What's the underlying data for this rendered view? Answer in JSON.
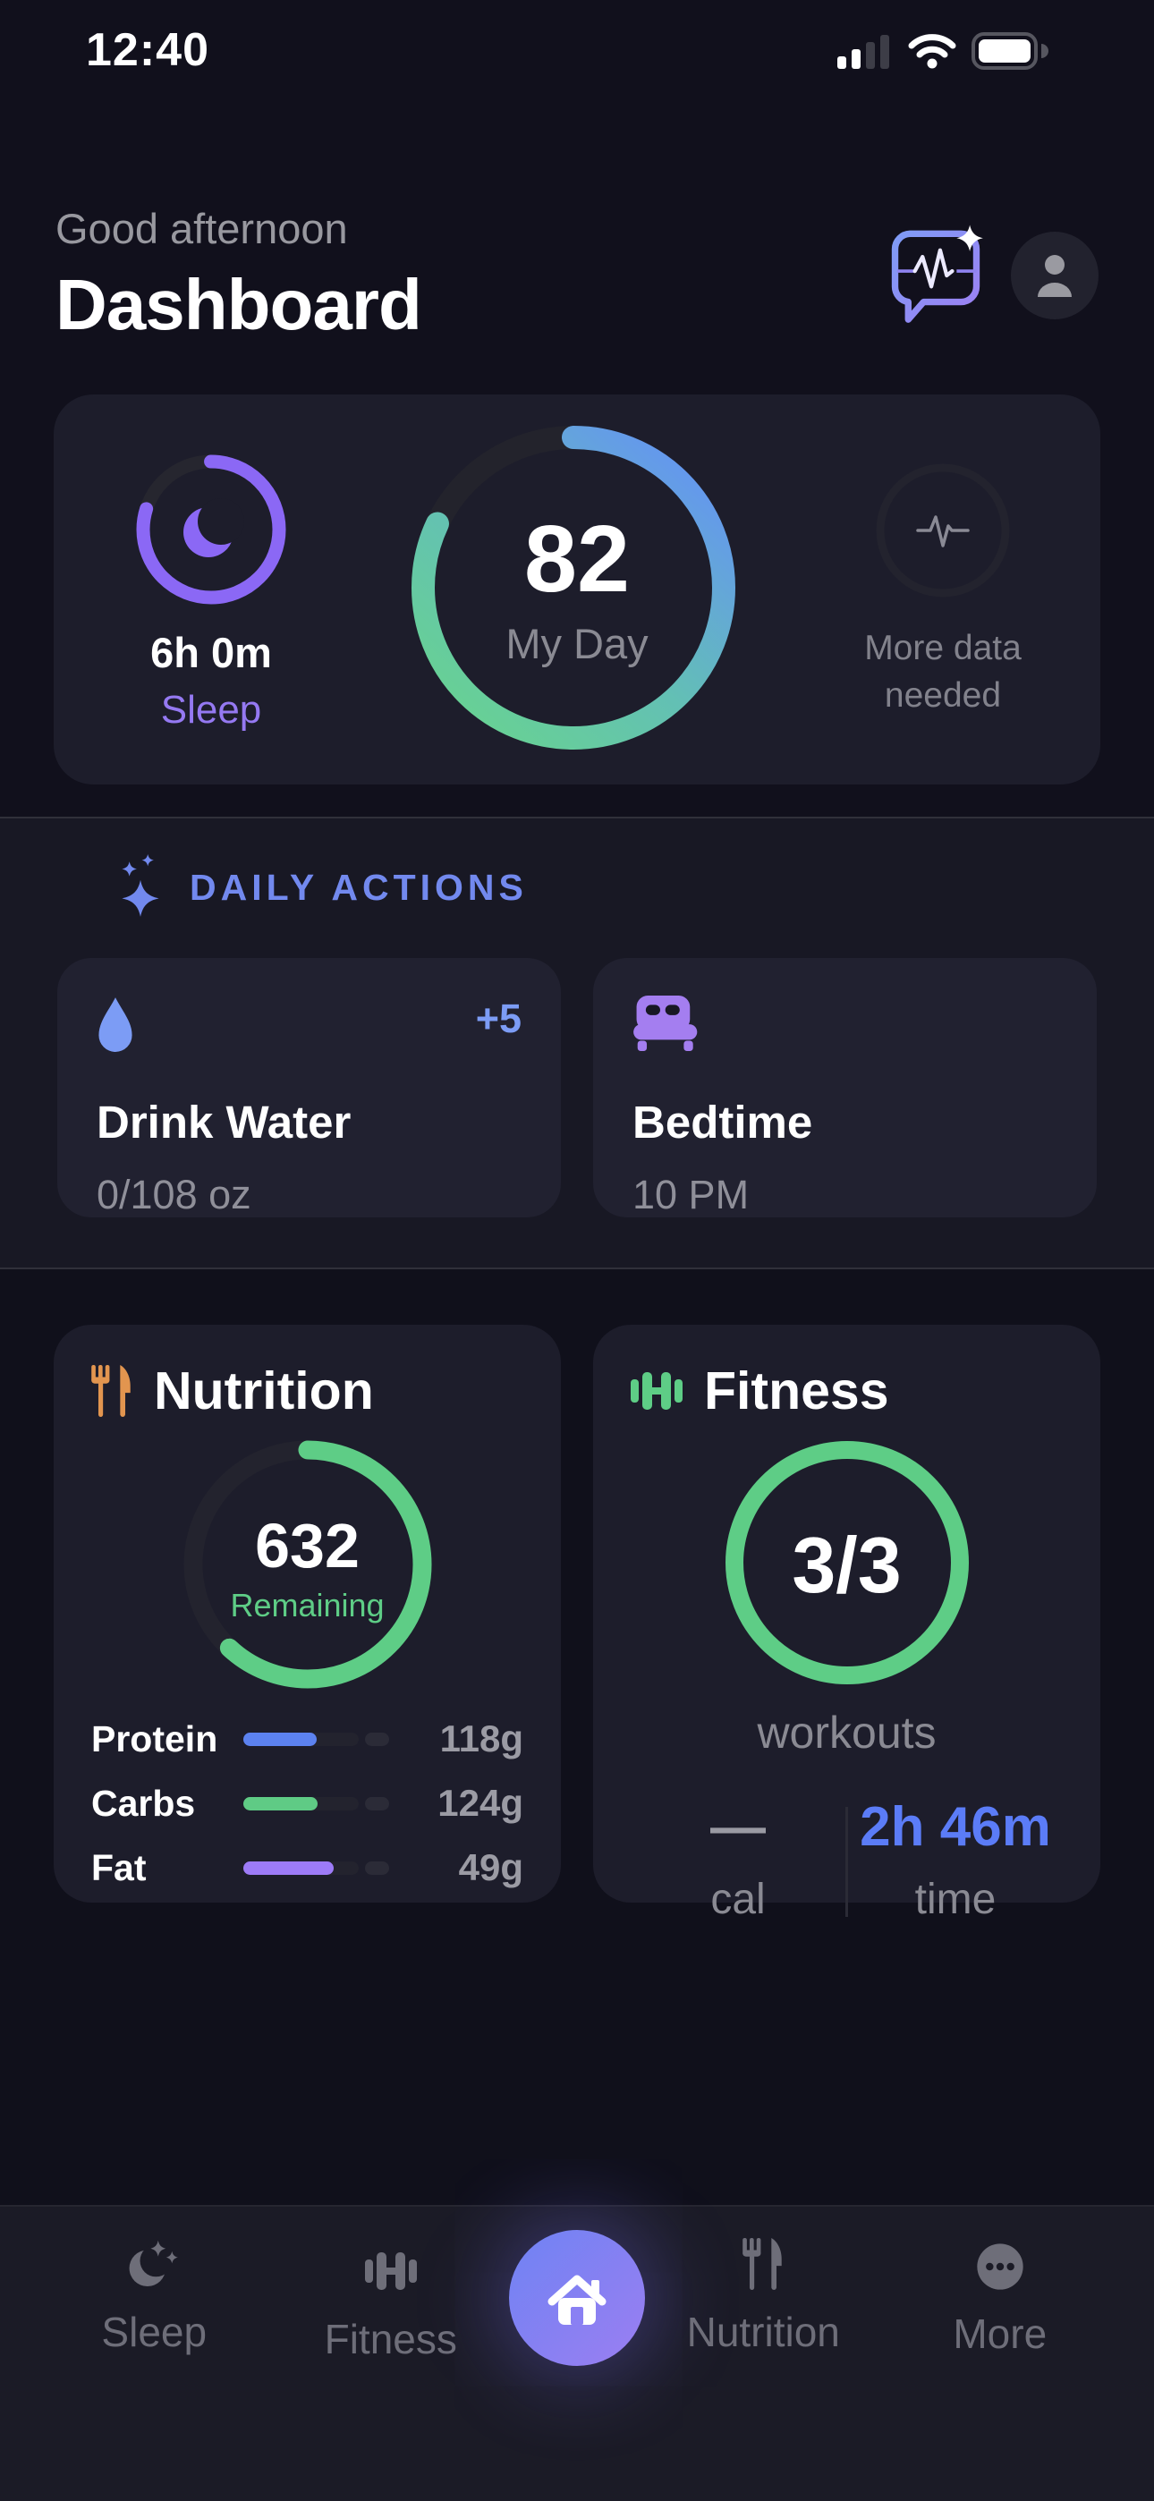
{
  "colors": {
    "background": "#11101c",
    "card": "#1d1d2b",
    "band": "#181824",
    "action_card": "#212130",
    "accent_blue": "#7289ee",
    "water_blue": "#7c9cf5",
    "time_blue": "#5b7cf7",
    "green": "#5ecd86",
    "sleep_purple": "#8b68f5",
    "bed_purple": "#a47ef0",
    "orange": "#e2954f",
    "day_ring_gradient": [
      "#68d292",
      "#63c0b4",
      "#6495f1"
    ]
  },
  "status_bar": {
    "time": "12:40"
  },
  "header": {
    "greeting": "Good afternoon",
    "title": "Dashboard"
  },
  "summary": {
    "sleep": {
      "value": "6h 0m",
      "label": "Sleep",
      "progress": 0.8
    },
    "my_day": {
      "score": "82",
      "label": "My Day",
      "progress": 0.82
    },
    "more_data": {
      "label": "More data needed"
    }
  },
  "daily_actions": {
    "title": "DAILY ACTIONS",
    "cards": [
      {
        "title": "Drink Water",
        "subtitle": "0/108 oz",
        "badge": "+5"
      },
      {
        "title": "Bedtime",
        "subtitle": "10 PM"
      }
    ]
  },
  "nutrition": {
    "title": "Nutrition",
    "remaining_value": "632",
    "remaining_label": "Remaining",
    "ring_progress": 0.62,
    "macros": [
      {
        "label": "Protein",
        "value": "118g",
        "fill": 0.5,
        "color": "#5c82f0"
      },
      {
        "label": "Carbs",
        "value": "124g",
        "fill": 0.51,
        "color": "#5fcb85"
      },
      {
        "label": "Fat",
        "value": "49g",
        "fill": 0.62,
        "color": "#9d7bf7"
      }
    ]
  },
  "fitness": {
    "title": "Fitness",
    "ring_value": "3/3",
    "ring_label": "workouts",
    "ring_progress": 1,
    "stats": [
      {
        "value": "—",
        "label": "cal"
      },
      {
        "value": "2h 46m",
        "label": "time"
      }
    ]
  },
  "nav": {
    "items": [
      {
        "label": "Sleep"
      },
      {
        "label": "Fitness"
      },
      {
        "label": "Nutrition"
      },
      {
        "label": "More"
      }
    ]
  }
}
